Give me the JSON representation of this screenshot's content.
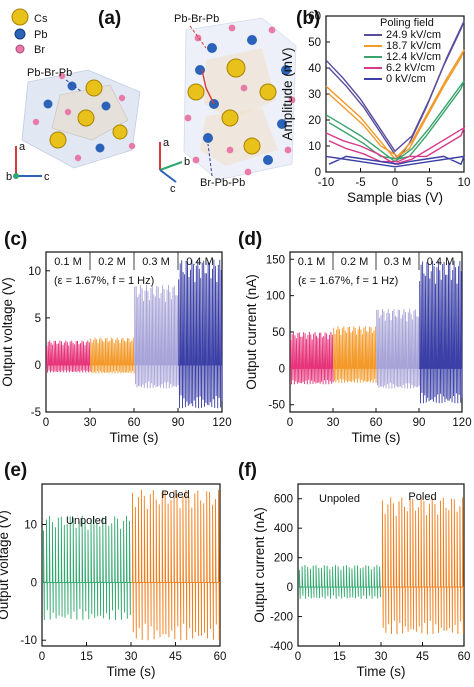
{
  "panels": {
    "a": {
      "label": "(a)",
      "legend": [
        {
          "name": "Cs",
          "color": "#e8c21a"
        },
        {
          "name": "Pb",
          "color": "#2a63b8"
        },
        {
          "name": "Br",
          "color": "#e87aa8"
        }
      ],
      "annotations": [
        "Pb-Br-Pb",
        "Pb-Br-Pb",
        "Br-Pb-Pb"
      ],
      "axes_left": [
        "a",
        "b",
        "c"
      ],
      "axes_right": [
        "a",
        "b",
        "c"
      ]
    },
    "b": {
      "label": "(b)"
    },
    "c": {
      "label": "(c)"
    },
    "d": {
      "label": "(d)"
    },
    "e": {
      "label": "(e)"
    },
    "f": {
      "label": "(f)"
    }
  },
  "chart_data": [
    {
      "id": "b",
      "type": "line",
      "xlabel": "Sample bias (V)",
      "ylabel": "Amplitude (mV)",
      "xlim": [
        -10,
        10
      ],
      "ylim": [
        0,
        60
      ],
      "xticks": [
        "-10",
        "-5",
        "0",
        "5",
        "10"
      ],
      "yticks": [
        "0",
        "10",
        "20",
        "30",
        "40",
        "50",
        "60"
      ],
      "legend_title": "Poling field",
      "legend_position": "top-right",
      "series": [
        {
          "name": "24.9 kV/cm",
          "color": "#5a4d9e",
          "x": [
            -10,
            -7.5,
            -5,
            -2.5,
            0,
            2.5,
            5,
            7.5,
            10
          ],
          "y": [
            43,
            36,
            28,
            18,
            8,
            14,
            28,
            44,
            58
          ]
        },
        {
          "name": "18.7 kV/cm",
          "color": "#f39a2b",
          "x": [
            -10,
            -7.5,
            -5,
            -2.5,
            0,
            2.5,
            5,
            7.5,
            10
          ],
          "y": [
            33,
            27,
            21,
            13,
            5,
            12,
            24,
            36,
            47
          ]
        },
        {
          "name": "12.4 kV/cm",
          "color": "#3aa36b",
          "x": [
            -10,
            -7.5,
            -5,
            -2.5,
            0,
            2.5,
            5,
            7.5,
            10
          ],
          "y": [
            22,
            18,
            14,
            9,
            4,
            9,
            17,
            26,
            35
          ]
        },
        {
          "name": "6.2 kV/cm",
          "color": "#d83a8a",
          "x": [
            -10,
            -7.5,
            -5,
            -2.5,
            0,
            2.5,
            5,
            7.5,
            10
          ],
          "y": [
            15,
            12,
            10,
            7,
            3,
            5,
            9,
            13,
            17
          ]
        },
        {
          "name": "0 kV/cm",
          "color": "#3b3fa6",
          "x": [
            -10,
            -7.5,
            -5,
            -2.5,
            0,
            2.5,
            5,
            7.5,
            10
          ],
          "y": [
            6,
            5,
            4,
            3,
            2,
            3,
            4,
            5,
            6
          ]
        }
      ]
    },
    {
      "id": "c",
      "type": "line",
      "xlabel": "Time (s)",
      "ylabel": "Output voltage (V)",
      "xlim": [
        0,
        120
      ],
      "ylim": [
        -5,
        12
      ],
      "xticks": [
        "0",
        "30",
        "60",
        "90",
        "120"
      ],
      "yticks": [
        "-5",
        "0",
        "5",
        "10"
      ],
      "annotation": "(ε = 1.67%, f = 1 Hz)",
      "segments": [
        {
          "label": "0.1 M",
          "x_range": [
            0,
            30
          ],
          "peak": 2.6,
          "trough": -0.8,
          "color": "#e6337a"
        },
        {
          "label": "0.2 M",
          "x_range": [
            30,
            60
          ],
          "peak": 2.9,
          "trough": -0.9,
          "color": "#f39a2b"
        },
        {
          "label": "0.3 M",
          "x_range": [
            60,
            90
          ],
          "peak": 8.5,
          "trough": -2.5,
          "color": "#a9a4d8"
        },
        {
          "label": "0.4 M",
          "x_range": [
            90,
            120
          ],
          "peak": 11.2,
          "trough": -4.6,
          "color": "#3b3fa6"
        }
      ]
    },
    {
      "id": "d",
      "type": "line",
      "xlabel": "Time (s)",
      "ylabel": "Output current (nA)",
      "xlim": [
        0,
        120
      ],
      "ylim": [
        -60,
        160
      ],
      "xticks": [
        "0",
        "30",
        "60",
        "90",
        "120"
      ],
      "yticks": [
        "-50",
        "0",
        "50",
        "100",
        "150"
      ],
      "annotation": "(ε = 1.67%, f = 1 Hz)",
      "segments": [
        {
          "label": "0.1 M",
          "x_range": [
            0,
            30
          ],
          "peak": 50,
          "trough": -22,
          "color": "#e6337a"
        },
        {
          "label": "0.2 M",
          "x_range": [
            30,
            60
          ],
          "peak": 58,
          "trough": -20,
          "color": "#f39a2b"
        },
        {
          "label": "0.3 M",
          "x_range": [
            60,
            90
          ],
          "peak": 82,
          "trough": -28,
          "color": "#a9a4d8"
        },
        {
          "label": "0.4 M",
          "x_range": [
            90,
            120
          ],
          "peak": 148,
          "trough": -48,
          "color": "#3b3fa6"
        }
      ]
    },
    {
      "id": "e",
      "type": "line",
      "xlabel": "Time (s)",
      "ylabel": "Output voltage (V)",
      "xlim": [
        0,
        60
      ],
      "ylim": [
        -11,
        17
      ],
      "xticks": [
        "0",
        "15",
        "30",
        "45",
        "60"
      ],
      "yticks": [
        "-10",
        "0",
        "10"
      ],
      "segments": [
        {
          "label": "Unpoled",
          "x_range": [
            0,
            30
          ],
          "peak": 11.5,
          "trough": -6.5,
          "color": "#2ea86c"
        },
        {
          "label": "Poled",
          "x_range": [
            30,
            60
          ],
          "peak": 16,
          "trough": -10,
          "color": "#f07d1a"
        }
      ]
    },
    {
      "id": "f",
      "type": "line",
      "xlabel": "Time (s)",
      "ylabel": "Output current (nA)",
      "xlim": [
        0,
        60
      ],
      "ylim": [
        -400,
        700
      ],
      "xticks": [
        "0",
        "15",
        "30",
        "45",
        "60"
      ],
      "yticks": [
        "-400",
        "-200",
        "0",
        "200",
        "400",
        "600"
      ],
      "segments": [
        {
          "label": "Unpoled",
          "x_range": [
            0,
            30
          ],
          "peak": 150,
          "trough": -80,
          "color": "#2ea86c"
        },
        {
          "label": "Poled",
          "x_range": [
            30,
            60
          ],
          "peak": 610,
          "trough": -320,
          "color": "#f07d1a"
        }
      ]
    }
  ]
}
